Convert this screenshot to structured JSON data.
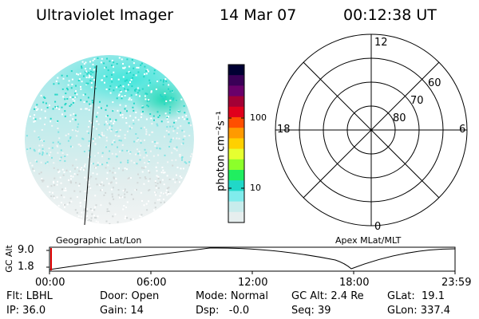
{
  "header": {
    "instrument": "Ultraviolet Imager",
    "date": "14 Mar 07",
    "time": "00:12:38 UT"
  },
  "colorbar": {
    "unit_label": "photon cm⁻²s⁻¹",
    "ticks": [
      "100",
      "10"
    ],
    "scale": "log",
    "colors": [
      "#000033",
      "#3a0057",
      "#6a006a",
      "#a30035",
      "#e0001c",
      "#ff4f00",
      "#ff9a00",
      "#ffd000",
      "#e6ff30",
      "#8cff2a",
      "#20ee60",
      "#20d8c8",
      "#80ecec",
      "#c8ecec",
      "#e6eeee"
    ]
  },
  "polar_plot": {
    "mlt_labels": [
      "12",
      "18",
      "6",
      "0"
    ],
    "lat_labels": [
      "60",
      "70",
      "80"
    ]
  },
  "timeline": {
    "left_label": "Geographic Lat/Lon",
    "right_label": "Apex MLat/MLT",
    "y_axis_label": "GC Alt",
    "y_ticks": [
      "9.0",
      "1.8"
    ],
    "x_ticks": [
      "00:00",
      "06:00",
      "12:00",
      "18:00",
      "23:59"
    ]
  },
  "status": {
    "flt": "Flt: LBHL",
    "door": "Door: Open",
    "mode": "Mode: Normal",
    "gc_alt": "GC Alt: 2.4 Re",
    "glat": "GLat:  19.1",
    "ip": "IP: 36.0",
    "gain": "Gain: 14",
    "dsp": "Dsp:   -0.0",
    "seq": "Seq: 39",
    "glon": "GLon: 337.4"
  }
}
